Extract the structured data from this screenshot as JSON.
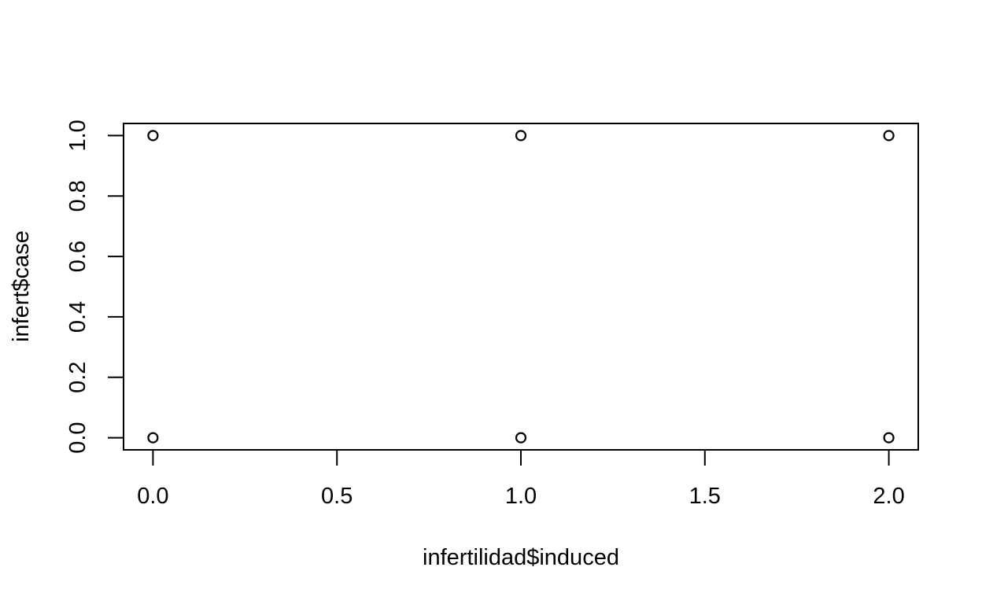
{
  "chart_data": {
    "type": "scatter",
    "title": "",
    "xlabel": "infertilidad$induced",
    "ylabel": "infert$case",
    "xlim": [
      -0.08,
      2.08
    ],
    "ylim": [
      -0.04,
      1.04
    ],
    "x_ticks": [
      {
        "value": 0.0,
        "label": "0.0"
      },
      {
        "value": 0.5,
        "label": "0.5"
      },
      {
        "value": 1.0,
        "label": "1.0"
      },
      {
        "value": 1.5,
        "label": "1.5"
      },
      {
        "value": 2.0,
        "label": "2.0"
      }
    ],
    "y_ticks": [
      {
        "value": 0.0,
        "label": "0.0"
      },
      {
        "value": 0.2,
        "label": "0.2"
      },
      {
        "value": 0.4,
        "label": "0.4"
      },
      {
        "value": 0.6,
        "label": "0.6"
      },
      {
        "value": 0.8,
        "label": "0.8"
      },
      {
        "value": 1.0,
        "label": "1.0"
      }
    ],
    "grid": false,
    "legend": "none",
    "marker": "open-circle",
    "points": [
      {
        "x": 0,
        "y": 1
      },
      {
        "x": 1,
        "y": 1
      },
      {
        "x": 2,
        "y": 1
      },
      {
        "x": 0,
        "y": 0
      },
      {
        "x": 1,
        "y": 0
      },
      {
        "x": 2,
        "y": 0
      }
    ],
    "colors": {
      "marker": "#000000",
      "axis": "#000000",
      "background": "#ffffff"
    }
  }
}
